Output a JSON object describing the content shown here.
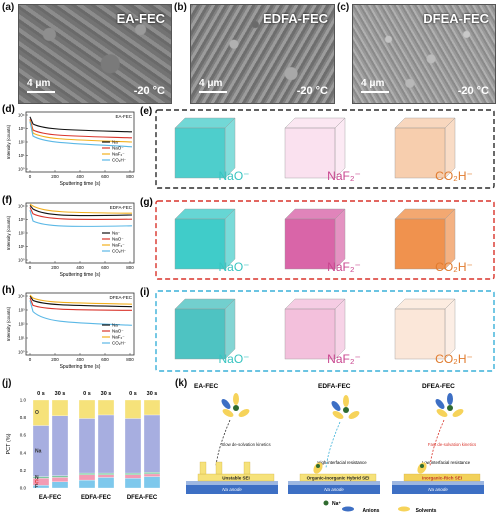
{
  "panels": {
    "a": {
      "letter": "(a)",
      "title": "EA-FEC",
      "scale": "4 μm",
      "temp": "-20 °C"
    },
    "b": {
      "letter": "(b)",
      "title": "EDFA-FEC",
      "scale": "4 μm",
      "temp": "-20 °C"
    },
    "c": {
      "letter": "(c)",
      "title": "DFEA-FEC",
      "scale": "4 μm",
      "temp": "-20 °C"
    },
    "d": {
      "letter": "(d)",
      "label": "EA-FEC"
    },
    "e": {
      "letter": "(e)"
    },
    "f": {
      "letter": "(f)",
      "label": "EDFA-FEC"
    },
    "g": {
      "letter": "(g)"
    },
    "h": {
      "letter": "(h)",
      "label": "DFEA-FEC"
    },
    "i": {
      "letter": "(i)"
    },
    "j": {
      "letter": "(j)"
    },
    "k": {
      "letter": "(k)"
    }
  },
  "tof": {
    "xlabel": "Sputtering time (s)",
    "ylabel": "Intensity (counts)",
    "xticks": [
      "0",
      "200",
      "400",
      "600",
      "800"
    ],
    "yticks": [
      "10⁴",
      "10³",
      "10²",
      "10¹",
      "10⁰"
    ],
    "legend": [
      "Na⁻",
      "NaO⁻",
      "NaF₂⁻",
      "CO₂H⁻"
    ],
    "colors": [
      "#111111",
      "#d9342b",
      "#f2b01e",
      "#5bb8e6"
    ]
  },
  "cubes": {
    "labels": [
      "NaO⁻",
      "NaF₂⁻",
      "CO₂H⁻"
    ],
    "label_colors": [
      "#38c4c0",
      "#c9468f",
      "#e07b2e"
    ],
    "box_colors": [
      "#2b2b2b",
      "#d9342b",
      "#3ab0d8"
    ]
  },
  "chart_data": {
    "type": "bar",
    "stacked": true,
    "title": "",
    "xlabel": "",
    "ylabel": "PCT (%)",
    "ylim": [
      0,
      1.0
    ],
    "yticks": [
      "0.0",
      "0.2",
      "0.4",
      "0.6",
      "0.8",
      "1.0"
    ],
    "group_labels": [
      "EA-FEC",
      "EDFA-FEC",
      "DFEA-FEC"
    ],
    "time_labels": [
      "0 s",
      "30 s"
    ],
    "segment_labels": [
      "F",
      "C",
      "N",
      "Na",
      "O"
    ],
    "segment_colors": [
      "#7ec8ec",
      "#f39bb4",
      "#7dc9a0",
      "#a7aee0",
      "#f6e27a"
    ],
    "bars": [
      {
        "group": "EA-FEC",
        "time": "0 s",
        "F": 0.03,
        "C": 0.08,
        "N": 0.02,
        "Na": 0.58,
        "O": 0.29
      },
      {
        "group": "EA-FEC",
        "time": "30 s",
        "F": 0.07,
        "C": 0.05,
        "N": 0.02,
        "Na": 0.68,
        "O": 0.18
      },
      {
        "group": "EDFA-FEC",
        "time": "0 s",
        "F": 0.09,
        "C": 0.06,
        "N": 0.02,
        "Na": 0.62,
        "O": 0.21
      },
      {
        "group": "EDFA-FEC",
        "time": "30 s",
        "F": 0.12,
        "C": 0.03,
        "N": 0.02,
        "Na": 0.66,
        "O": 0.17
      },
      {
        "group": "DFEA-FEC",
        "time": "0 s",
        "F": 0.11,
        "C": 0.04,
        "N": 0.02,
        "Na": 0.62,
        "O": 0.21
      },
      {
        "group": "DFEA-FEC",
        "time": "30 s",
        "F": 0.13,
        "C": 0.03,
        "N": 0.02,
        "Na": 0.65,
        "O": 0.17
      }
    ]
  },
  "scheme": {
    "titles": [
      "EA-FEC",
      "EDFA-FEC",
      "DFEA-FEC"
    ],
    "kinetics": [
      "Slow de-solvation kinetics",
      "",
      "Fast de-solvation kinetics"
    ],
    "resistance": [
      "",
      "High interfacial resistance",
      "Low interfacial resistance"
    ],
    "sei": [
      "Unstable SEI",
      "Organic-Inorganic Hybrid SEI",
      "Inorganic-Rich SEI"
    ],
    "anode": "Na anode",
    "legend": [
      "Na⁺",
      "Anions",
      "Solvents"
    ]
  }
}
